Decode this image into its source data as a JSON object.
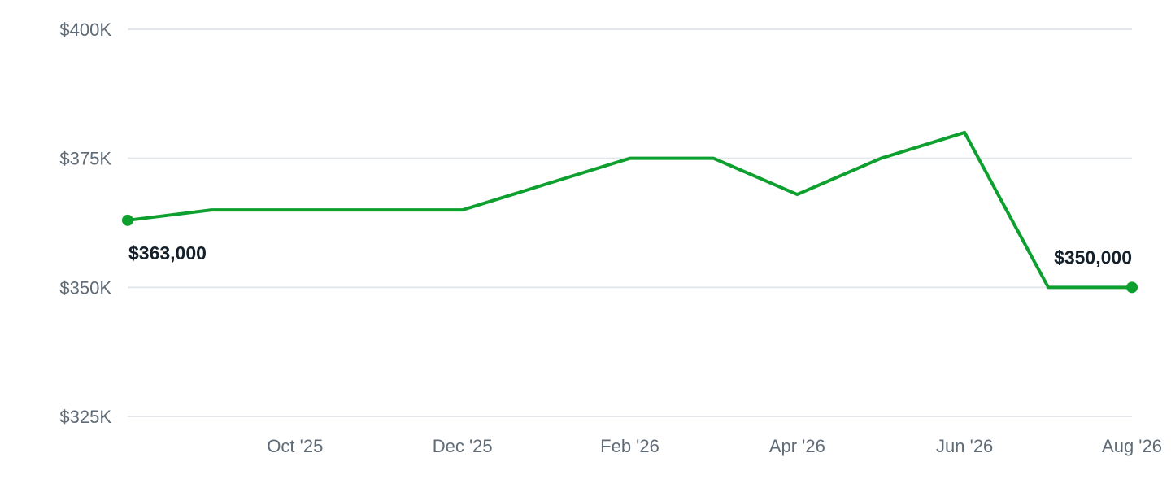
{
  "chart_data": {
    "type": "line",
    "x": [
      "2025-08",
      "2025-09",
      "2025-10",
      "2025-11",
      "2025-12",
      "2026-01",
      "2026-02",
      "2026-03",
      "2026-04",
      "2026-05",
      "2026-06",
      "2026-07",
      "2026-08"
    ],
    "x_ticks": [
      {
        "x": "2025-10",
        "label": "Oct '25"
      },
      {
        "x": "2025-12",
        "label": "Dec '25"
      },
      {
        "x": "2026-02",
        "label": "Feb '26"
      },
      {
        "x": "2026-04",
        "label": "Apr '26"
      },
      {
        "x": "2026-06",
        "label": "Jun '26"
      },
      {
        "x": "2026-08",
        "label": "Aug '26"
      }
    ],
    "y_ticks": [
      {
        "value": 400000,
        "label": "$400K"
      },
      {
        "value": 375000,
        "label": "$375K"
      },
      {
        "value": 350000,
        "label": "$350K"
      },
      {
        "value": 325000,
        "label": "$325K"
      }
    ],
    "series": [
      {
        "values": [
          363000,
          365000,
          365000,
          365000,
          365000,
          370000,
          375000,
          375000,
          368000,
          375000,
          380000,
          350000,
          350000
        ],
        "color": "#0ea02f"
      }
    ],
    "annotations": [
      {
        "x": "2025-08",
        "value": 363000,
        "label": "$363,000"
      },
      {
        "x": "2026-08",
        "value": 350000,
        "label": "$350,000"
      }
    ],
    "ylim": [
      325000,
      400000
    ],
    "grid": true,
    "legend": "none",
    "title": "",
    "xlabel": "",
    "ylabel": ""
  }
}
